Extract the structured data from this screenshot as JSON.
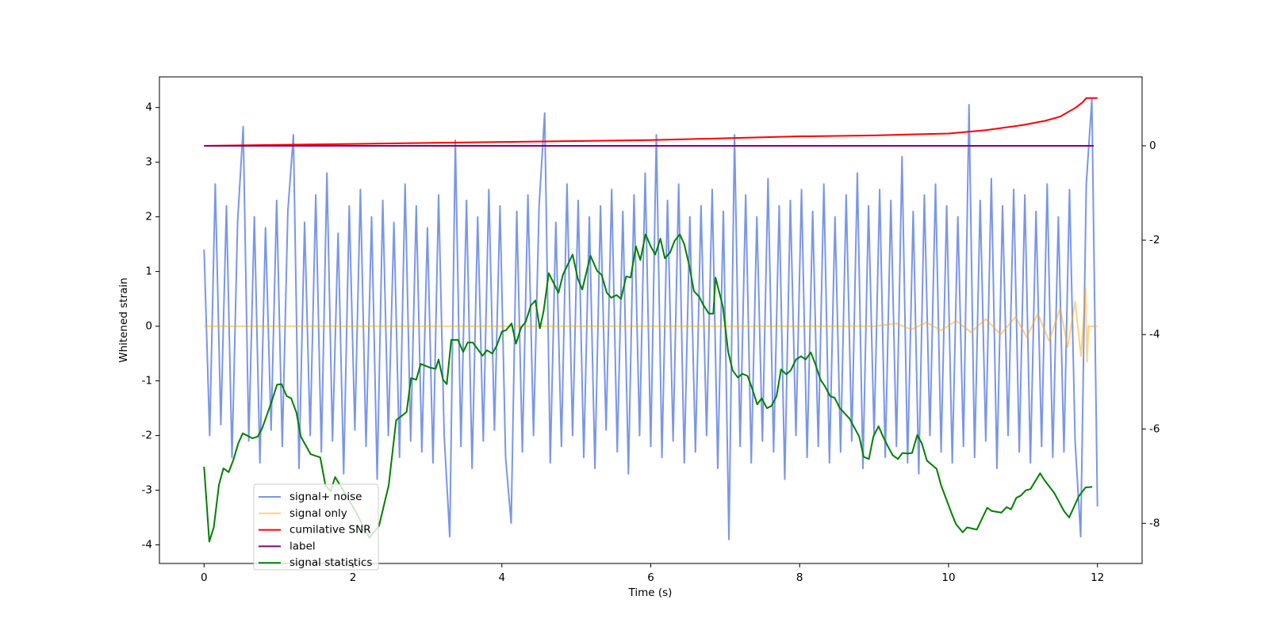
{
  "chart_data": {
    "type": "line",
    "xlabel": "Time (s)",
    "ylabel": "Whitened strain",
    "xlim": [
      -0.6,
      12.6
    ],
    "xticks": [
      0,
      2,
      4,
      6,
      8,
      10,
      12
    ],
    "ylim": [
      -4.34,
      4.56
    ],
    "yticks": [
      -4,
      -3,
      -2,
      -1,
      0,
      1,
      2,
      3,
      4
    ],
    "y2lim": [
      -8.85,
      1.46
    ],
    "y2ticks": [
      -8,
      -6,
      -4,
      -2,
      0
    ],
    "series": [
      {
        "name": "signal+ noise",
        "color": "#4169e1",
        "alpha": 0.7,
        "x": [
          0,
          0.075,
          0.15,
          0.225,
          0.3,
          0.375,
          0.45,
          0.525,
          0.6,
          0.675,
          0.75,
          0.825,
          0.9,
          0.975,
          1.05,
          1.125,
          1.2,
          1.275,
          1.35,
          1.425,
          1.5,
          1.575,
          1.65,
          1.725,
          1.8,
          1.875,
          1.95,
          2.025,
          2.1,
          2.175,
          2.25,
          2.325,
          2.4,
          2.475,
          2.55,
          2.625,
          2.7,
          2.775,
          2.85,
          2.925,
          3,
          3.075,
          3.15,
          3.225,
          3.3,
          3.375,
          3.45,
          3.525,
          3.6,
          3.675,
          3.75,
          3.825,
          3.9,
          3.975,
          4.05,
          4.125,
          4.2,
          4.275,
          4.35,
          4.425,
          4.5,
          4.575,
          4.65,
          4.725,
          4.8,
          4.875,
          4.95,
          5.025,
          5.1,
          5.175,
          5.25,
          5.325,
          5.4,
          5.475,
          5.55,
          5.625,
          5.7,
          5.775,
          5.85,
          5.925,
          6,
          6.075,
          6.15,
          6.225,
          6.3,
          6.375,
          6.45,
          6.525,
          6.6,
          6.675,
          6.75,
          6.825,
          6.9,
          6.975,
          7.05,
          7.125,
          7.2,
          7.275,
          7.35,
          7.425,
          7.5,
          7.575,
          7.65,
          7.725,
          7.8,
          7.875,
          7.95,
          8.025,
          8.1,
          8.175,
          8.25,
          8.325,
          8.4,
          8.475,
          8.55,
          8.625,
          8.7,
          8.775,
          8.85,
          8.925,
          9,
          9.075,
          9.15,
          9.225,
          9.3,
          9.375,
          9.45,
          9.525,
          9.6,
          9.675,
          9.75,
          9.825,
          9.9,
          9.975,
          10.05,
          10.125,
          10.2,
          10.275,
          10.35,
          10.425,
          10.5,
          10.575,
          10.65,
          10.725,
          10.8,
          10.875,
          10.95,
          11.025,
          11.1,
          11.175,
          11.25,
          11.325,
          11.4,
          11.475,
          11.55,
          11.625,
          11.7,
          11.775,
          11.85,
          11.925,
          12
        ],
        "values": [
          1.4,
          -2.0,
          2.6,
          -1.8,
          2.2,
          -2.4,
          1.9,
          3.65,
          -2.1,
          2.0,
          -2.5,
          1.8,
          -1.9,
          2.3,
          -2.2,
          2.1,
          3.5,
          -2.6,
          1.9,
          -2.0,
          2.4,
          -2.3,
          2.8,
          -2.1,
          1.7,
          -2.7,
          2.2,
          -1.9,
          2.5,
          -2.2,
          2.0,
          -2.8,
          2.3,
          -2.0,
          1.9,
          -2.4,
          2.6,
          -2.1,
          2.2,
          -2.3,
          1.8,
          -2.5,
          2.4,
          -2.0,
          -3.85,
          3.4,
          -2.2,
          2.3,
          -2.6,
          2.0,
          -2.1,
          2.5,
          -1.9,
          2.2,
          -2.4,
          -3.6,
          2.1,
          -2.3,
          2.4,
          -2.0,
          2.2,
          3.9,
          -2.5,
          1.9,
          -2.2,
          2.6,
          -2.0,
          2.3,
          -2.4,
          2.0,
          -2.6,
          2.2,
          -1.9,
          2.5,
          -2.3,
          2.1,
          -2.7,
          2.4,
          -2.0,
          2.8,
          -2.2,
          3.5,
          -2.4,
          2.3,
          -2.1,
          2.6,
          -2.5,
          2.0,
          -2.3,
          2.2,
          -2.0,
          2.5,
          -2.6,
          2.1,
          -3.9,
          3.5,
          -2.2,
          2.4,
          -2.5,
          2.0,
          -2.1,
          2.7,
          -2.3,
          2.2,
          -2.8,
          2.3,
          -2.0,
          2.5,
          -2.4,
          2.1,
          -2.2,
          2.6,
          -2.5,
          2.0,
          -2.3,
          2.4,
          -2.1,
          2.8,
          -2.6,
          2.2,
          -2.0,
          2.5,
          -2.4,
          2.3,
          -2.2,
          3.1,
          -2.5,
          2.1,
          -2.7,
          2.4,
          -2.0,
          2.6,
          -2.3,
          2.2,
          -2.5,
          2.0,
          -2.2,
          4.05,
          -2.4,
          2.3,
          -2.1,
          2.7,
          -2.6,
          2.2,
          -2.0,
          2.5,
          -2.3,
          2.4,
          -2.5,
          2.1,
          -2.2,
          2.6,
          -2.4,
          2.0,
          -2.3,
          2.5,
          -2.1,
          -3.85,
          2.6,
          4.15,
          -3.3
        ]
      },
      {
        "name": "signal only",
        "color": "#ffa500",
        "alpha": 0.5,
        "x": [
          0,
          9,
          9.3,
          9.5,
          9.7,
          9.9,
          10.1,
          10.3,
          10.5,
          10.7,
          10.9,
          11.05,
          11.2,
          11.35,
          11.5,
          11.6,
          11.7,
          11.78,
          11.84,
          11.86,
          11.88,
          12
        ],
        "values": [
          0,
          0,
          0.05,
          -0.06,
          0.07,
          -0.08,
          0.1,
          -0.11,
          0.13,
          -0.15,
          0.17,
          -0.2,
          0.23,
          -0.27,
          0.32,
          -0.38,
          0.45,
          -0.55,
          0.7,
          -0.65,
          0,
          0
        ]
      },
      {
        "name": "cumilative SNR",
        "color": "#ff0000",
        "alpha": 1,
        "axis": "y2",
        "x": [
          0,
          2,
          4,
          6,
          8,
          9,
          10,
          10.5,
          11,
          11.3,
          11.5,
          11.7,
          11.8,
          11.85,
          12
        ],
        "values": [
          0,
          0.04,
          0.08,
          0.12,
          0.2,
          0.22,
          0.26,
          0.33,
          0.44,
          0.53,
          0.62,
          0.8,
          0.92,
          1.01,
          1.01
        ]
      },
      {
        "name": "label",
        "color": "#800080",
        "alpha": 1,
        "axis": "y2",
        "x": [
          0,
          11.95
        ],
        "values": [
          0,
          0
        ]
      },
      {
        "name": "signal statistics",
        "color": "#008000",
        "alpha": 1,
        "x": [
          0,
          0.07,
          0.13,
          0.2,
          0.26,
          0.33,
          0.39,
          0.46,
          0.52,
          0.65,
          0.72,
          0.78,
          0.91,
          0.98,
          1.04,
          1.11,
          1.17,
          1.24,
          1.3,
          1.43,
          1.56,
          1.63,
          1.7,
          1.76,
          1.89,
          2.02,
          2.22,
          2.35,
          2.48,
          2.58,
          2.72,
          2.78,
          2.85,
          2.91,
          3.04,
          3.11,
          3.15,
          3.21,
          3.26,
          3.32,
          3.41,
          3.48,
          3.54,
          3.61,
          3.74,
          3.8,
          3.87,
          3.93,
          4.0,
          4.06,
          4.13,
          4.19,
          4.26,
          4.32,
          4.39,
          4.45,
          4.51,
          4.56,
          4.63,
          4.76,
          4.82,
          4.95,
          5.02,
          5.08,
          5.19,
          5.28,
          5.34,
          5.41,
          5.47,
          5.54,
          5.6,
          5.67,
          5.73,
          5.8,
          5.86,
          5.93,
          6.0,
          6.06,
          6.13,
          6.19,
          6.26,
          6.32,
          6.39,
          6.45,
          6.52,
          6.58,
          6.65,
          6.71,
          6.78,
          6.84,
          6.87,
          6.97,
          7.04,
          7.1,
          7.17,
          7.23,
          7.3,
          7.36,
          7.43,
          7.49,
          7.56,
          7.62,
          7.69,
          7.75,
          7.82,
          7.88,
          7.95,
          8.02,
          8.08,
          8.15,
          8.21,
          8.28,
          8.34,
          8.41,
          8.47,
          8.54,
          8.67,
          8.8,
          8.86,
          8.93,
          8.99,
          9.06,
          9.12,
          9.19,
          9.25,
          9.32,
          9.38,
          9.45,
          9.51,
          9.58,
          9.64,
          9.71,
          9.84,
          9.9,
          10.04,
          10.1,
          10.19,
          10.25,
          10.38,
          10.52,
          10.58,
          10.71,
          10.78,
          10.84,
          10.91,
          10.97,
          11.04,
          11.1,
          11.23,
          11.29,
          11.42,
          11.55,
          11.62,
          11.75,
          11.84,
          11.93
        ],
        "values": [
          -2.57,
          -3.94,
          -3.68,
          -2.9,
          -2.6,
          -2.67,
          -2.46,
          -2.14,
          -1.96,
          -2.05,
          -2.02,
          -1.87,
          -1.37,
          -1.07,
          -1.06,
          -1.28,
          -1.32,
          -1.58,
          -2.02,
          -2.34,
          -2.4,
          -2.91,
          -3.02,
          -2.76,
          -3.05,
          -3.35,
          -3.87,
          -3.65,
          -2.91,
          -1.72,
          -1.57,
          -0.95,
          -0.98,
          -0.69,
          -0.76,
          -0.78,
          -0.61,
          -0.98,
          -1.06,
          -0.25,
          -0.25,
          -0.47,
          -0.3,
          -0.3,
          -0.54,
          -0.44,
          -0.5,
          -0.36,
          -0.1,
          -0.07,
          0.05,
          -0.32,
          -0.02,
          0.08,
          0.38,
          0.47,
          -0.04,
          0.27,
          0.97,
          0.61,
          0.94,
          1.31,
          0.87,
          0.67,
          1.29,
          1.01,
          0.94,
          0.61,
          0.52,
          0.57,
          0.5,
          0.91,
          0.89,
          1.46,
          1.21,
          1.68,
          1.46,
          1.31,
          1.6,
          1.24,
          1.35,
          1.56,
          1.68,
          1.5,
          1.09,
          0.64,
          0.54,
          0.38,
          0.23,
          0.23,
          0.89,
          0.35,
          -0.47,
          -0.81,
          -0.94,
          -0.87,
          -0.91,
          -1.13,
          -1.43,
          -1.32,
          -1.5,
          -1.46,
          -1.28,
          -0.79,
          -0.88,
          -0.81,
          -0.61,
          -0.55,
          -0.61,
          -0.48,
          -0.69,
          -0.98,
          -1.1,
          -1.28,
          -1.31,
          -1.5,
          -1.69,
          -2.02,
          -2.39,
          -2.43,
          -2.02,
          -1.83,
          -2.02,
          -2.21,
          -2.36,
          -2.43,
          -2.32,
          -2.33,
          -2.32,
          -1.99,
          -2.14,
          -2.46,
          -2.61,
          -2.91,
          -3.42,
          -3.62,
          -3.77,
          -3.68,
          -3.72,
          -3.32,
          -3.38,
          -3.41,
          -3.31,
          -3.35,
          -3.14,
          -3.1,
          -3.0,
          -2.98,
          -2.69,
          -2.82,
          -3.05,
          -3.38,
          -3.5,
          -3.11,
          -2.95,
          -2.94
        ]
      }
    ]
  }
}
